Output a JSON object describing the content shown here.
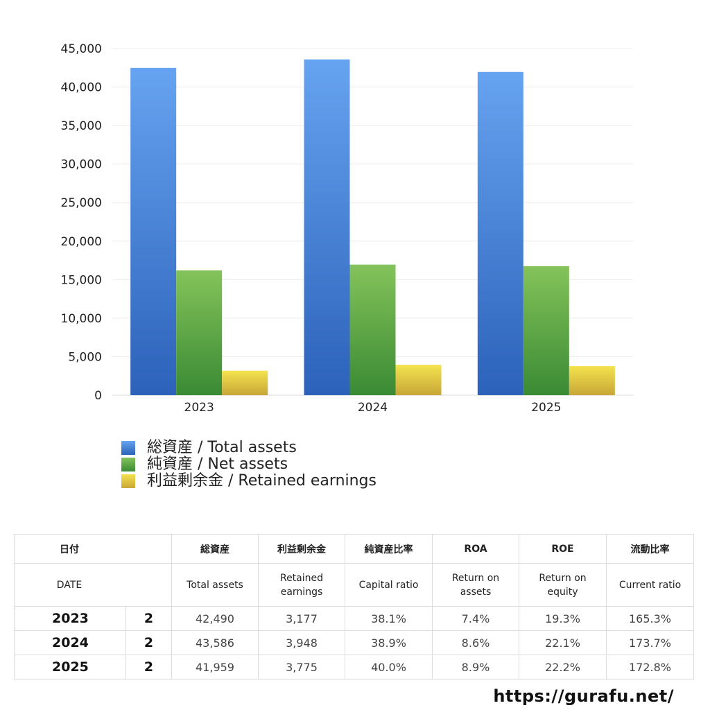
{
  "chart_data": {
    "type": "bar",
    "categories": [
      "2023",
      "2024",
      "2025"
    ],
    "series": [
      {
        "name": "総資産 / Total assets",
        "values": [
          42490,
          43586,
          41959
        ],
        "color_top": "#66a3f0",
        "color_bottom": "#2c62ba"
      },
      {
        "name": "純資産 / Net assets",
        "values": [
          16200,
          16950,
          16750
        ],
        "color_top": "#84c35a",
        "color_bottom": "#3a8a34"
      },
      {
        "name": "利益剰余金 / Retained earnings",
        "values": [
          3177,
          3948,
          3775
        ],
        "color_top": "#f4e34e",
        "color_bottom": "#c8a637"
      }
    ],
    "ylim": [
      0,
      45000
    ],
    "yticks": [
      "0",
      "5,000",
      "10,000",
      "15,000",
      "20,000",
      "25,000",
      "30,000",
      "35,000",
      "40,000",
      "45,000"
    ],
    "grid": true,
    "legend_position": "bottom"
  },
  "table": {
    "header_ja": [
      "日付",
      "総資産",
      "利益剰余金",
      "純資産比率",
      "ROA",
      "ROE",
      "流動比率"
    ],
    "header_en": [
      "DATE",
      "Total assets",
      "Retained\nearnings",
      "Capital ratio",
      "Return on\nassets",
      "Return on\nequity",
      "Current ratio"
    ],
    "rows": [
      {
        "year": "2023",
        "period": "2",
        "total_assets": "42,490",
        "retained": "3,177",
        "capital_ratio": "38.1%",
        "roa": "7.4%",
        "roe": "19.3%",
        "current_ratio": "165.3%"
      },
      {
        "year": "2024",
        "period": "2",
        "total_assets": "43,586",
        "retained": "3,948",
        "capital_ratio": "38.9%",
        "roa": "8.6%",
        "roe": "22.1%",
        "current_ratio": "173.7%"
      },
      {
        "year": "2025",
        "period": "2",
        "total_assets": "41,959",
        "retained": "3,775",
        "capital_ratio": "40.0%",
        "roa": "8.9%",
        "roe": "22.2%",
        "current_ratio": "172.8%"
      }
    ]
  },
  "footer": {
    "url": "https://gurafu.net/"
  }
}
